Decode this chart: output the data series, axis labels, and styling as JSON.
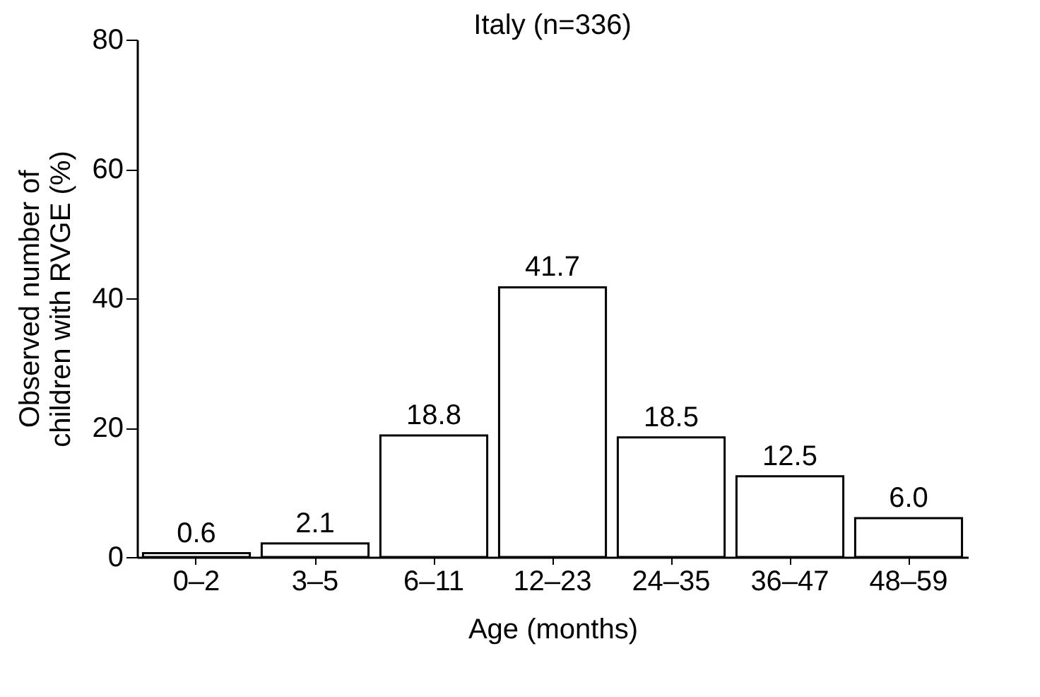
{
  "chart_data": {
    "type": "bar",
    "title": "Italy (n=336)",
    "xlabel": "Age (months)",
    "ylabel": "Observed number of\nchildren with RVGE (%)",
    "categories": [
      "0–2",
      "3–5",
      "6–11",
      "12–23",
      "24–35",
      "36–47",
      "48–59"
    ],
    "values": [
      0.6,
      2.1,
      18.8,
      41.7,
      18.5,
      12.5,
      6.0
    ],
    "value_labels": [
      "0.6",
      "2.1",
      "18.8",
      "41.7",
      "18.5",
      "12.5",
      "6.0"
    ],
    "color": "#ffffff",
    "ylim": [
      0,
      80
    ],
    "yticks": [
      0,
      20,
      40,
      60,
      80
    ],
    "grid": false
  }
}
